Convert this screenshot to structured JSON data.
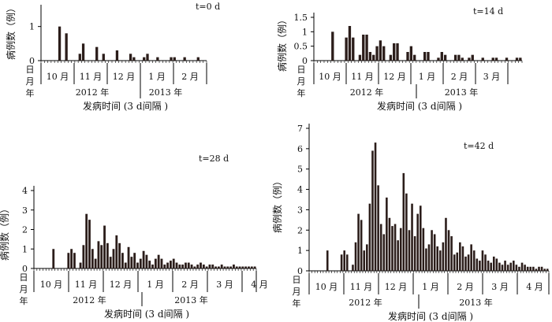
{
  "chart_data": [
    {
      "type": "bar",
      "title": "t=0 d",
      "ylabel": "病例数（例）",
      "xlabel": "发病时间 (3  d间隔 )",
      "side_labels": [
        "日",
        "月",
        "年"
      ],
      "months": [
        "10 月",
        "11 月",
        "12 月",
        "1 月",
        "2 月"
      ],
      "years": [
        "2012 年",
        "2013 年"
      ],
      "ylim": [
        0,
        1.5
      ],
      "yticks": [
        "0",
        "1"
      ],
      "values": [
        0,
        0,
        0,
        0,
        0,
        1,
        0,
        0.8,
        0,
        0,
        0,
        0.2,
        0.5,
        0,
        0,
        0,
        0.4,
        0,
        0.2,
        0,
        0,
        0,
        0.3,
        0,
        0,
        0,
        0.2,
        0.1,
        0,
        0,
        0.1,
        0.2,
        0,
        0,
        0.1,
        0,
        0,
        0,
        0.1,
        0.1,
        0,
        0,
        0.1,
        0,
        0,
        0,
        0.1,
        0,
        0
      ]
    },
    {
      "type": "bar",
      "title": "t=14 d",
      "ylabel": "病例数（例）",
      "xlabel": "发病时间 (3  d间隔 )",
      "side_labels": [
        "日",
        "月",
        "年"
      ],
      "months": [
        "10 月",
        "11 月",
        "12 月",
        "1 月",
        "2 月",
        "3 月"
      ],
      "years": [
        "2012 年",
        "2013 年"
      ],
      "ylim": [
        0,
        1.5
      ],
      "yticks": [
        "0",
        "0.5",
        "1",
        "1.5"
      ],
      "values": [
        0,
        0,
        0,
        0,
        0,
        1,
        0,
        0,
        0,
        0.8,
        1.2,
        0.8,
        0,
        0.2,
        0.9,
        0.9,
        0.3,
        0.2,
        0.5,
        0.7,
        0.5,
        0,
        0.2,
        0.6,
        0.6,
        0,
        0,
        0.3,
        0.5,
        0.2,
        0,
        0,
        0.3,
        0.3,
        0,
        0,
        0.1,
        0.3,
        0.2,
        0,
        0,
        0.2,
        0.2,
        0.1,
        0,
        0.1,
        0.2,
        0,
        0,
        0.1,
        0,
        0,
        0.1,
        0.1,
        0,
        0,
        0.1,
        0,
        0,
        0.1,
        0.1
      ]
    },
    {
      "type": "bar",
      "title": "t=28 d",
      "ylabel": "病例数（例）",
      "xlabel": "发病时间 (3  d间隔 )",
      "side_labels": [
        "日",
        "月",
        "年"
      ],
      "months": [
        "10 月",
        "11 月",
        "12 月",
        "1 月",
        "2 月",
        "3 月",
        "4 月"
      ],
      "years": [
        "2012 年",
        "2013 年"
      ],
      "ylim": [
        0,
        4
      ],
      "yticks": [
        "0",
        "1",
        "2",
        "3",
        "4"
      ],
      "values": [
        0,
        0,
        0,
        0,
        0,
        0,
        1,
        0,
        0,
        0,
        0,
        0.8,
        1,
        0.8,
        0,
        0.3,
        1.2,
        2.8,
        2.5,
        1,
        0.5,
        1.4,
        1.2,
        2.2,
        1.3,
        0.6,
        1,
        1.7,
        1.3,
        0.8,
        0.3,
        1.1,
        0.6,
        0.8,
        0.3,
        0.5,
        0.9,
        0.7,
        0.4,
        0.2,
        0.5,
        0.7,
        0.5,
        0.2,
        0.3,
        0.4,
        0.5,
        0.3,
        0.2,
        0.2,
        0.3,
        0.3,
        0.2,
        0.1,
        0.2,
        0.3,
        0.2,
        0.1,
        0.2,
        0.2,
        0.1,
        0.1,
        0.2,
        0.1,
        0.1,
        0.1,
        0.2,
        0.1,
        0.1,
        0.1,
        0.1,
        0.1,
        0.1,
        0.1
      ]
    },
    {
      "type": "bar",
      "title": "t=42 d",
      "ylabel": "病例数（例）",
      "xlabel": "发病时间 (3  d间隔 )",
      "side_labels": [
        "日",
        "月",
        "年"
      ],
      "months": [
        "10 月",
        "11 月",
        "12 月",
        "1 月",
        "2 月",
        "3 月",
        "4 月"
      ],
      "years": [
        "2012 年",
        "2013 年"
      ],
      "ylim": [
        0,
        7
      ],
      "yticks": [
        "0",
        "1",
        "2",
        "3",
        "4",
        "5",
        "6",
        "7"
      ],
      "values": [
        0,
        0,
        0,
        0,
        0,
        0,
        1,
        0,
        0,
        0,
        0,
        0.8,
        1,
        0.8,
        0,
        0.3,
        1.4,
        2.8,
        2.5,
        1,
        1.3,
        3.3,
        5.9,
        6.3,
        4.2,
        2.3,
        1.8,
        3.6,
        2.6,
        2.2,
        2.3,
        1.5,
        2.1,
        4.8,
        3.8,
        2,
        3.3,
        1.7,
        2.8,
        3.2,
        2.1,
        1.1,
        1.3,
        2,
        1.8,
        1.2,
        1,
        1.4,
        2.6,
        2,
        1.7,
        0.8,
        0.9,
        1.4,
        1.2,
        0.7,
        0.8,
        1.3,
        1,
        0.6,
        0.5,
        1,
        0.8,
        0.5,
        0.4,
        0.7,
        0.6,
        0.4,
        0.3,
        0.5,
        0.3,
        0.4,
        0.5,
        0.3,
        0.2,
        0.4,
        0.3,
        0.2,
        0.2,
        0.2,
        0.1,
        0.2,
        0.2,
        0.1,
        0.1
      ]
    }
  ]
}
